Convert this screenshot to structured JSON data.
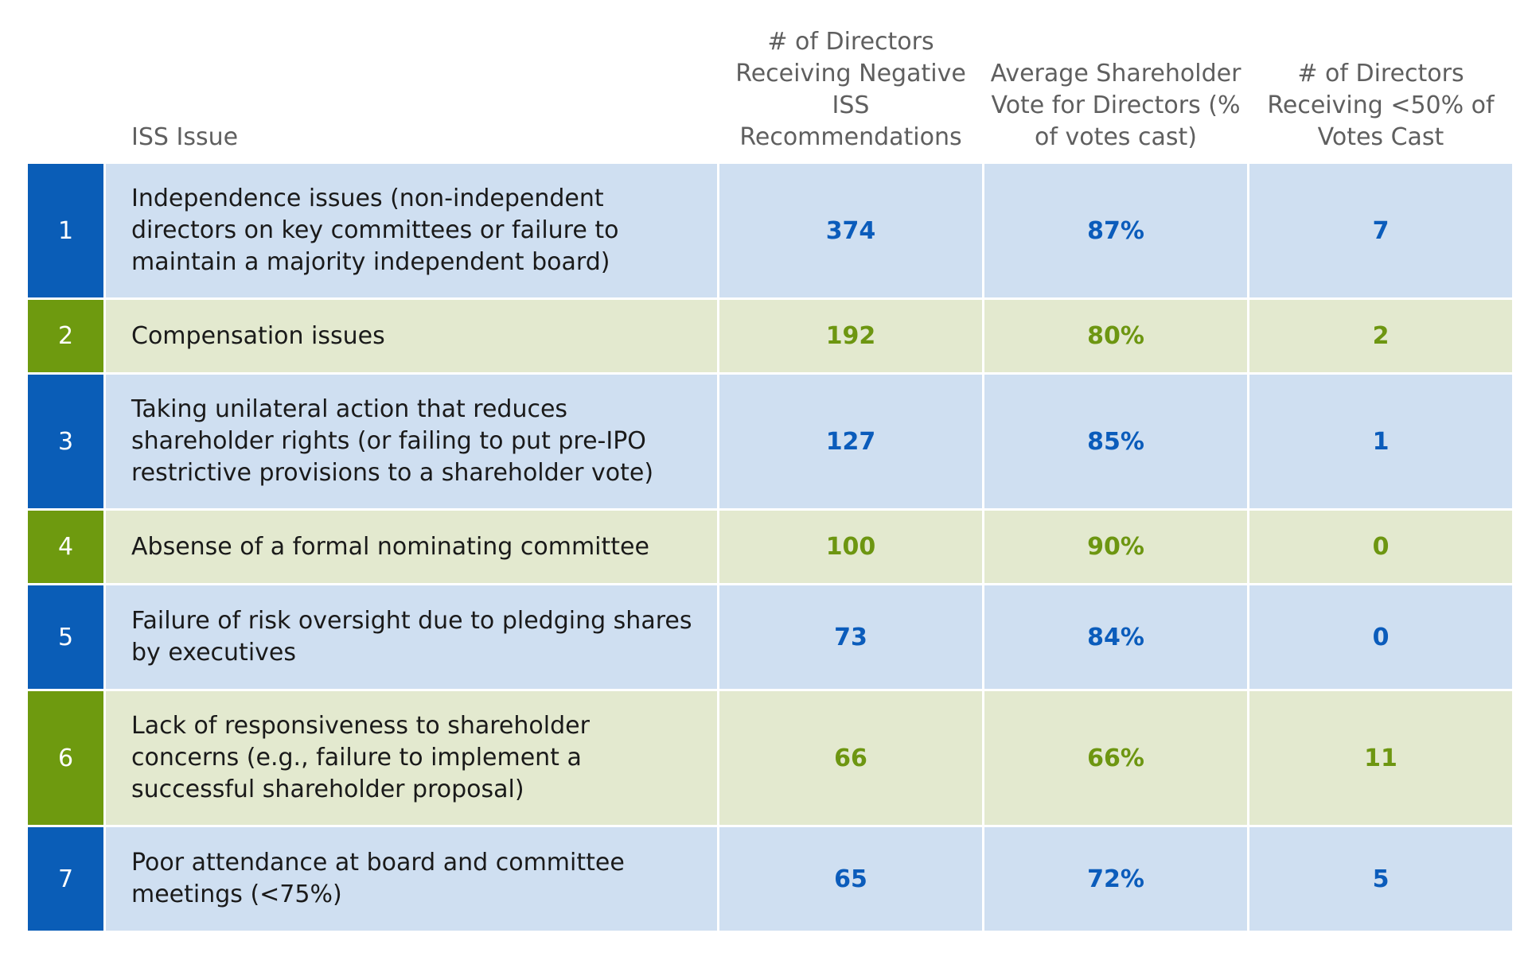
{
  "table": {
    "headers": {
      "number": "",
      "issue": "ISS Issue",
      "negative_recs": "# of Directors Receiving Negative ISS Recommendations",
      "avg_vote": "Average Shareholder Vote for Directors (% of votes cast)",
      "below_50": "# of Directors Receiving <50% of Votes Cast"
    },
    "rows": [
      {
        "rank": "1",
        "issue": "Independence issues (non-independent directors on key committees or failure to maintain a majority independent board)",
        "negative_recs": "374",
        "avg_vote": "87%",
        "below_50": "7"
      },
      {
        "rank": "2",
        "issue": "Compensation issues",
        "negative_recs": "192",
        "avg_vote": "80%",
        "below_50": "2"
      },
      {
        "rank": "3",
        "issue": "Taking unilateral action that reduces shareholder rights (or failing to put pre-IPO restrictive provisions to a shareholder vote)",
        "negative_recs": "127",
        "avg_vote": "85%",
        "below_50": "1"
      },
      {
        "rank": "4",
        "issue": "Absense of a formal nominating committee",
        "negative_recs": "100",
        "avg_vote": "90%",
        "below_50": "0"
      },
      {
        "rank": "5",
        "issue": "Failure of risk oversight due to pledging shares by executives",
        "negative_recs": "73",
        "avg_vote": "84%",
        "below_50": "0"
      },
      {
        "rank": "6",
        "issue": "Lack of responsiveness to shareholder concerns (e.g., failure to implement a successful shareholder proposal)",
        "negative_recs": "66",
        "avg_vote": "66%",
        "below_50": "11"
      },
      {
        "rank": "7",
        "issue": "Poor attendance at board and committee meetings (<75%)",
        "negative_recs": "65",
        "avg_vote": "72%",
        "below_50": "5"
      }
    ]
  },
  "colors": {
    "blue_accent": "#0a5db7",
    "blue_fill": "#cfdff1",
    "green_accent": "#6e9a0f",
    "green_fill": "#e3e9cf"
  }
}
